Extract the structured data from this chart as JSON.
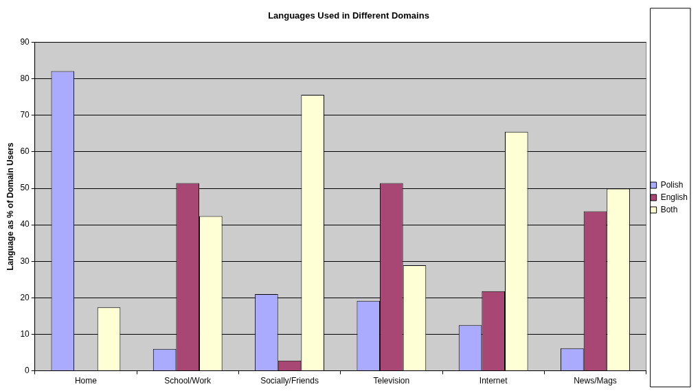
{
  "chart_data": {
    "type": "bar",
    "title": "Languages Used in Different Domains",
    "ylabel": "Language as % of Domain Users",
    "categories": [
      "Home",
      "School/Work",
      "Socially/Friends",
      "Television",
      "Internet",
      "News/Mags"
    ],
    "series": [
      {
        "name": "Polish",
        "color": "#aaaaff",
        "values": [
          82.1,
          6.0,
          21.0,
          19.2,
          12.5,
          6.2
        ]
      },
      {
        "name": "English",
        "color": "#a94774",
        "values": [
          0,
          51.4,
          2.8,
          51.4,
          21.8,
          43.7
        ]
      },
      {
        "name": "Both",
        "color": "#ffffd6",
        "values": [
          17.4,
          42.4,
          75.6,
          28.9,
          65.5,
          49.9
        ]
      }
    ],
    "ylim": [
      0,
      90
    ],
    "yticks": [
      0,
      10,
      20,
      30,
      40,
      50,
      60,
      70,
      80,
      90
    ],
    "grid": "y",
    "legend": "right"
  }
}
